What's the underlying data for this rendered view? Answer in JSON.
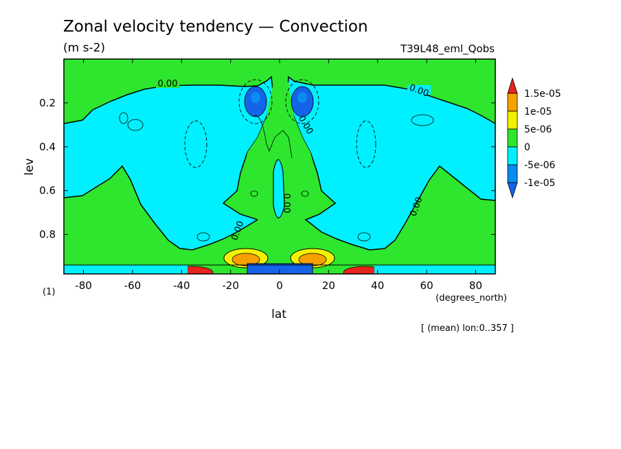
{
  "chart_data": {
    "type": "contour",
    "title": "Zonal velocity tendency — Convection",
    "units": "(m s-2)",
    "experiment": "T39L48_eml_Qobs",
    "xlabel": "lat",
    "xunits": "(degrees_north)",
    "ylabel": "lev",
    "yunits": "(1)",
    "footnote": "[ (mean) lon:0..357 ]",
    "xlim": [
      -88,
      88
    ],
    "ylim": [
      0.0,
      0.98
    ],
    "x_ticks": [
      -80,
      -60,
      -40,
      -20,
      0,
      20,
      40,
      60,
      80
    ],
    "x_tick_labels": [
      "-80",
      "-60",
      "-40",
      "-20",
      "0",
      "20",
      "40",
      "60",
      "80"
    ],
    "y_ticks": [
      0.2,
      0.4,
      0.6,
      0.8
    ],
    "y_tick_labels": [
      "0.2",
      "0.4",
      "0.6",
      "0.8"
    ],
    "contour_labels": [
      "0.00",
      "0.00",
      "0.00",
      "0.00",
      "0.00",
      "0.00"
    ],
    "colorbar": {
      "levels": [
        "1.5e-05",
        "1e-05",
        "5e-06",
        "0",
        "-5e-06",
        "-1e-05"
      ],
      "colors": [
        "#e8231c",
        "#f7a000",
        "#f2f200",
        "#2ee62e",
        "#00f0ff",
        "#0b8cf0",
        "#1463e8"
      ]
    }
  }
}
